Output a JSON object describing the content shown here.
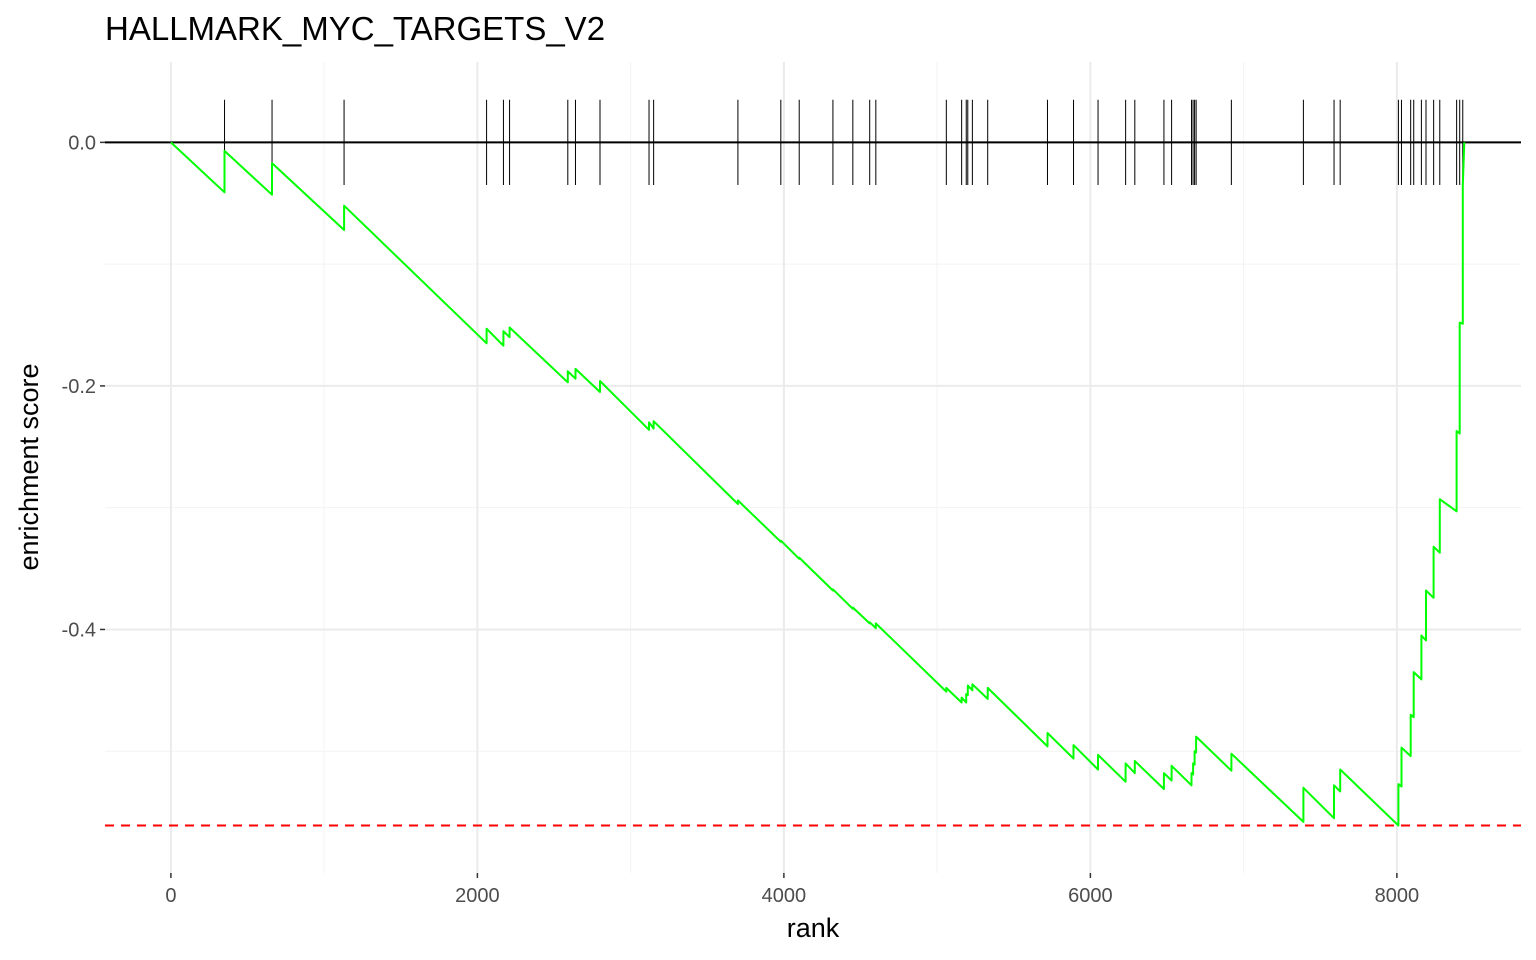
{
  "chart_data": {
    "type": "line",
    "title": "HALLMARK_MYC_TARGETS_V2",
    "xlabel": "rank",
    "ylabel": "enrichment score",
    "xlim": [
      -430,
      8810
    ],
    "ylim": [
      -0.6,
      0.066
    ],
    "x_ticks": [
      {
        "value": 0,
        "label": "0"
      },
      {
        "value": 2000,
        "label": "2000"
      },
      {
        "value": 4000,
        "label": "4000"
      },
      {
        "value": 6000,
        "label": "6000"
      },
      {
        "value": 8000,
        "label": "8000"
      }
    ],
    "y_ticks": [
      {
        "value": 0,
        "label": "0.0"
      },
      {
        "value": -0.2,
        "label": "-0.2"
      },
      {
        "value": -0.4,
        "label": "-0.4"
      }
    ],
    "grid": true,
    "zero_line": 0,
    "min_es_line": -0.561,
    "hit_tick_range": [
      0.035,
      -0.035
    ],
    "hit_positions": [
      350,
      660,
      1130,
      2060,
      2170,
      2210,
      2590,
      2640,
      2800,
      3120,
      3150,
      3700,
      3980,
      4100,
      4320,
      4450,
      4560,
      4600,
      5060,
      5160,
      5190,
      5200,
      5230,
      5330,
      5720,
      5890,
      6050,
      6230,
      6290,
      6480,
      6530,
      6660,
      6670,
      6680,
      6690,
      6920,
      7390,
      7590,
      7630,
      8010,
      8030,
      8090,
      8110,
      8160,
      8190,
      8240,
      8280,
      8390,
      8410,
      8430
    ],
    "series": [
      {
        "color": "#00ff00",
        "x": [
          0,
          350,
          350,
          660,
          660,
          1130,
          1130,
          2060,
          2060,
          2170,
          2170,
          2210,
          2210,
          2590,
          2590,
          2640,
          2640,
          2800,
          2800,
          3120,
          3120,
          3150,
          3150,
          3700,
          3700,
          3980,
          3980,
          4100,
          4100,
          4320,
          4320,
          4450,
          4450,
          4560,
          4560,
          4600,
          4600,
          5060,
          5060,
          5160,
          5160,
          5190,
          5190,
          5200,
          5200,
          5230,
          5230,
          5330,
          5330,
          5720,
          5720,
          5890,
          5890,
          6050,
          6050,
          6230,
          6230,
          6290,
          6290,
          6480,
          6480,
          6530,
          6530,
          6660,
          6660,
          6670,
          6670,
          6680,
          6680,
          6690,
          6690,
          6920,
          6920,
          7390,
          7390,
          7590,
          7590,
          7630,
          7630,
          8010,
          8010,
          8030,
          8030,
          8090,
          8090,
          8110,
          8110,
          8160,
          8160,
          8190,
          8190,
          8240,
          8240,
          8280,
          8280,
          8390,
          8390,
          8410,
          8410,
          8430,
          8430,
          8440
        ],
        "y": [
          0,
          -0.041,
          -0.007,
          -0.043,
          -0.017,
          -0.072,
          -0.052,
          -0.165,
          -0.153,
          -0.167,
          -0.155,
          -0.16,
          -0.152,
          -0.197,
          -0.188,
          -0.194,
          -0.186,
          -0.205,
          -0.196,
          -0.236,
          -0.23,
          -0.235,
          -0.229,
          -0.297,
          -0.294,
          -0.328,
          -0.327,
          -0.342,
          -0.341,
          -0.368,
          -0.367,
          -0.383,
          -0.382,
          -0.395,
          -0.394,
          -0.399,
          -0.395,
          -0.451,
          -0.448,
          -0.46,
          -0.456,
          -0.46,
          -0.453,
          -0.454,
          -0.446,
          -0.45,
          -0.445,
          -0.457,
          -0.448,
          -0.496,
          -0.485,
          -0.506,
          -0.495,
          -0.515,
          -0.503,
          -0.525,
          -0.51,
          -0.518,
          -0.508,
          -0.531,
          -0.518,
          -0.524,
          -0.512,
          -0.528,
          -0.518,
          -0.519,
          -0.51,
          -0.511,
          -0.5,
          -0.501,
          -0.488,
          -0.516,
          -0.502,
          -0.558,
          -0.53,
          -0.555,
          -0.528,
          -0.533,
          -0.515,
          -0.561,
          -0.527,
          -0.529,
          -0.497,
          -0.504,
          -0.47,
          -0.472,
          -0.435,
          -0.441,
          -0.405,
          -0.409,
          -0.368,
          -0.374,
          -0.332,
          -0.337,
          -0.293,
          -0.303,
          -0.237,
          -0.239,
          -0.148,
          -0.149,
          -0.035,
          0
        ]
      }
    ]
  }
}
